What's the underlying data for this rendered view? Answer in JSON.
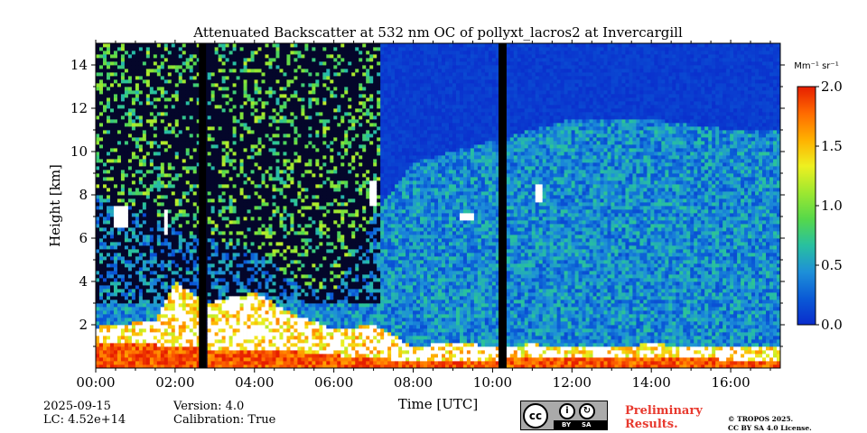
{
  "chart_data": {
    "type": "heatmap",
    "title": "Attenuated Backscatter at 532 nm OC of pollyxt_lacros2 at Invercargill",
    "xlabel": "Time [UTC]",
    "ylabel": "Height [km]",
    "xlim_hours": [
      0,
      17.25
    ],
    "ylim_km": [
      0,
      15
    ],
    "x_ticks": [
      {
        "value": 0,
        "label": "00:00"
      },
      {
        "value": 2,
        "label": "02:00"
      },
      {
        "value": 4,
        "label": "04:00"
      },
      {
        "value": 6,
        "label": "06:00"
      },
      {
        "value": 8,
        "label": "08:00"
      },
      {
        "value": 10,
        "label": "10:00"
      },
      {
        "value": 12,
        "label": "12:00"
      },
      {
        "value": 14,
        "label": "14:00"
      },
      {
        "value": 16,
        "label": "16:00"
      }
    ],
    "y_ticks": [
      {
        "value": 2,
        "label": "2"
      },
      {
        "value": 4,
        "label": "4"
      },
      {
        "value": 6,
        "label": "6"
      },
      {
        "value": 8,
        "label": "8"
      },
      {
        "value": 10,
        "label": "10"
      },
      {
        "value": 12,
        "label": "12"
      },
      {
        "value": 14,
        "label": "14"
      }
    ],
    "colorbar": {
      "label": "Mm⁻¹ sr⁻¹",
      "range": [
        0.0,
        2.0
      ],
      "ticks": [
        {
          "value": 0.0,
          "label": "0.0"
        },
        {
          "value": 0.5,
          "label": "0.5"
        },
        {
          "value": 1.0,
          "label": "1.0"
        },
        {
          "value": 1.5,
          "label": "1.5"
        },
        {
          "value": 2.0,
          "label": "2.0"
        }
      ],
      "colors": [
        "#0a2ccc",
        "#0a5ad6",
        "#1e90d8",
        "#28c0a0",
        "#56d84a",
        "#9ee830",
        "#eef020",
        "#ffb000",
        "#ff6a00",
        "#e61e00"
      ]
    },
    "no_data_intervals_hours": [
      [
        2.6,
        2.78
      ],
      [
        10.15,
        10.35
      ]
    ],
    "no_data_color": "#000000",
    "below_noise_color": "#04062a",
    "profile_signal": [
      {
        "t": 0.0,
        "pbl": 1.9,
        "ceiling": 8.0,
        "surface": 1.2
      },
      {
        "t": 1.5,
        "pbl": 2.2,
        "ceiling": 7.0,
        "surface": 1.1
      },
      {
        "t": 2.0,
        "pbl": 4.0,
        "ceiling": 6.5,
        "surface": 1.0
      },
      {
        "t": 2.8,
        "pbl": 3.0,
        "ceiling": 6.0,
        "surface": 0.9
      },
      {
        "t": 4.0,
        "pbl": 3.5,
        "ceiling": 5.5,
        "surface": 0.9
      },
      {
        "t": 5.0,
        "pbl": 2.5,
        "ceiling": 4.0,
        "surface": 0.8
      },
      {
        "t": 6.0,
        "pbl": 1.8,
        "ceiling": 3.5,
        "surface": 0.6
      },
      {
        "t": 7.0,
        "pbl": 2.0,
        "ceiling": 7.0,
        "surface": 0.5
      },
      {
        "t": 8.0,
        "pbl": 1.0,
        "ceiling": 9.5,
        "surface": 0.3
      },
      {
        "t": 9.0,
        "pbl": 1.2,
        "ceiling": 10.0,
        "surface": 0.4
      },
      {
        "t": 10.0,
        "pbl": 1.0,
        "ceiling": 10.5,
        "surface": 0.4
      },
      {
        "t": 11.0,
        "pbl": 1.1,
        "ceiling": 11.0,
        "surface": 0.5
      },
      {
        "t": 12.0,
        "pbl": 1.0,
        "ceiling": 11.5,
        "surface": 0.5
      },
      {
        "t": 14.0,
        "pbl": 1.1,
        "ceiling": 11.5,
        "surface": 0.5
      },
      {
        "t": 16.0,
        "pbl": 1.0,
        "ceiling": 11.0,
        "surface": 0.4
      },
      {
        "t": 17.25,
        "pbl": 1.0,
        "ceiling": 11.0,
        "surface": 0.3
      }
    ],
    "elevated_layers": [
      {
        "t_start": 0.45,
        "t_end": 0.8,
        "h_low": 6.5,
        "h_high": 7.5
      },
      {
        "t_start": 1.7,
        "t_end": 1.85,
        "h_low": 6.2,
        "h_high": 7.3
      },
      {
        "t_start": 6.9,
        "t_end": 7.1,
        "h_low": 7.5,
        "h_high": 8.6
      },
      {
        "t_start": 9.2,
        "t_end": 9.5,
        "h_low": 6.8,
        "h_high": 7.2
      },
      {
        "t_start": 11.05,
        "t_end": 11.25,
        "h_low": 7.6,
        "h_high": 8.5
      }
    ]
  },
  "footer": {
    "date": "2025-09-15",
    "lc": "LC: 4.52e+14",
    "version": "Version: 4.0",
    "calibration": "Calibration: True",
    "license_badge": {
      "cc": "cc",
      "by": "BY",
      "sa": "SA"
    },
    "preliminary_line1": "Preliminary",
    "preliminary_line2": "Results.",
    "copyright_line1": "© TROPOS 2025.",
    "copyright_line2": "CC BY SA 4.0 License."
  }
}
